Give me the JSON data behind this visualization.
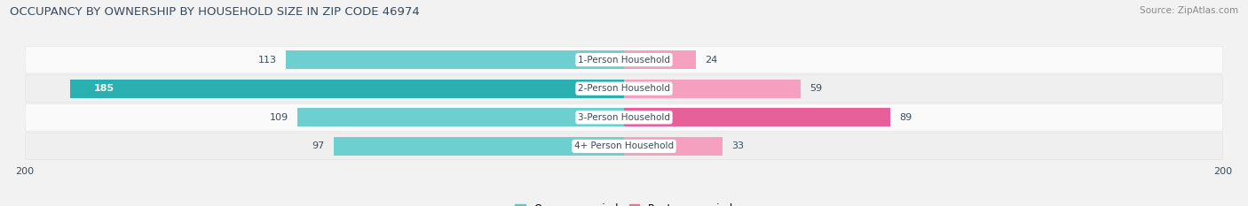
{
  "title": "OCCUPANCY BY OWNERSHIP BY HOUSEHOLD SIZE IN ZIP CODE 46974",
  "source": "Source: ZipAtlas.com",
  "categories": [
    "1-Person Household",
    "2-Person Household",
    "3-Person Household",
    "4+ Person Household"
  ],
  "owner_values": [
    113,
    185,
    109,
    97
  ],
  "renter_values": [
    24,
    59,
    89,
    33
  ],
  "owner_color_dark": "#2ab0b0",
  "owner_color_light": "#6dcfcf",
  "renter_color_dark": "#e8609a",
  "renter_color_light": "#f4a0be",
  "renter_color_mid": "#f07aaa",
  "background_color": "#f2f2f2",
  "row_bg_light": "#fafafa",
  "row_bg_darker": "#efefef",
  "axis_max": 200,
  "label_color_dark": "#3a4a5a",
  "title_color": "#3a4a5a",
  "legend_owner_color": "#5bc8c8",
  "legend_renter_color": "#f07090"
}
